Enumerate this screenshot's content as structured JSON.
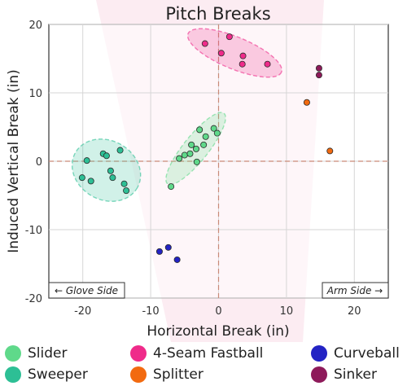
{
  "chart_data": {
    "type": "scatter",
    "title": "Pitch Breaks",
    "xlabel": "Horizontal Break (in)",
    "ylabel": "Induced Vertical Break (in)",
    "xlim": [
      -25,
      25
    ],
    "ylim": [
      -20,
      20
    ],
    "xticks": [
      "-20",
      "-10",
      "0",
      "10",
      "20"
    ],
    "yticks": [
      "20",
      "10",
      "0",
      "-10",
      "-20"
    ],
    "xtick_values": [
      -20,
      -10,
      0,
      10,
      20
    ],
    "ytick_values": [
      20,
      10,
      0,
      -10,
      -20
    ],
    "grid": true,
    "annotations": {
      "left": "← Glove Side",
      "right": "Arm Side →"
    },
    "series": [
      {
        "name": "Slider",
        "color": "#5fd98a",
        "ellipse": true,
        "points": [
          [
            -7,
            -3.7
          ],
          [
            -5.8,
            0.4
          ],
          [
            -5,
            0.9
          ],
          [
            -4.2,
            1.1
          ],
          [
            -4,
            2.4
          ],
          [
            -3.3,
            1.8
          ],
          [
            -3.2,
            -0.1
          ],
          [
            -2.8,
            4.6
          ],
          [
            -2.2,
            2.4
          ],
          [
            -1.9,
            3.6
          ],
          [
            -0.7,
            4.8
          ],
          [
            -0.2,
            4.1
          ]
        ]
      },
      {
        "name": "Sweeper",
        "color": "#2dbf95",
        "ellipse": true,
        "points": [
          [
            -20.1,
            -2.4
          ],
          [
            -19.4,
            0.1
          ],
          [
            -18.8,
            -2.9
          ],
          [
            -17,
            1.1
          ],
          [
            -16.5,
            0.8
          ],
          [
            -15.9,
            -1.4
          ],
          [
            -15.6,
            -2.4
          ],
          [
            -14.5,
            1.6
          ],
          [
            -13.9,
            -3.3
          ],
          [
            -13.6,
            -4.3
          ]
        ]
      },
      {
        "name": "4-Seam Fastball",
        "color": "#ef2b8a",
        "ellipse": true,
        "points": [
          [
            -2,
            17.2
          ],
          [
            0.4,
            15.8
          ],
          [
            1.6,
            18.2
          ],
          [
            3.5,
            14.2
          ],
          [
            3.6,
            15.4
          ],
          [
            7.2,
            14.2
          ]
        ]
      },
      {
        "name": "Splitter",
        "color": "#f26a10",
        "ellipse": false,
        "points": [
          [
            13,
            8.6
          ],
          [
            16.4,
            1.5
          ]
        ]
      },
      {
        "name": "Curveball",
        "color": "#2323c4",
        "ellipse": false,
        "points": [
          [
            -8.7,
            -13.2
          ],
          [
            -7.4,
            -12.6
          ],
          [
            -6.1,
            -14.4
          ]
        ]
      },
      {
        "name": "Sinker",
        "color": "#8e1a5a",
        "ellipse": false,
        "points": [
          [
            14.8,
            13.6
          ],
          [
            14.8,
            12.6
          ]
        ]
      }
    ],
    "legend_placement": "bottom"
  }
}
